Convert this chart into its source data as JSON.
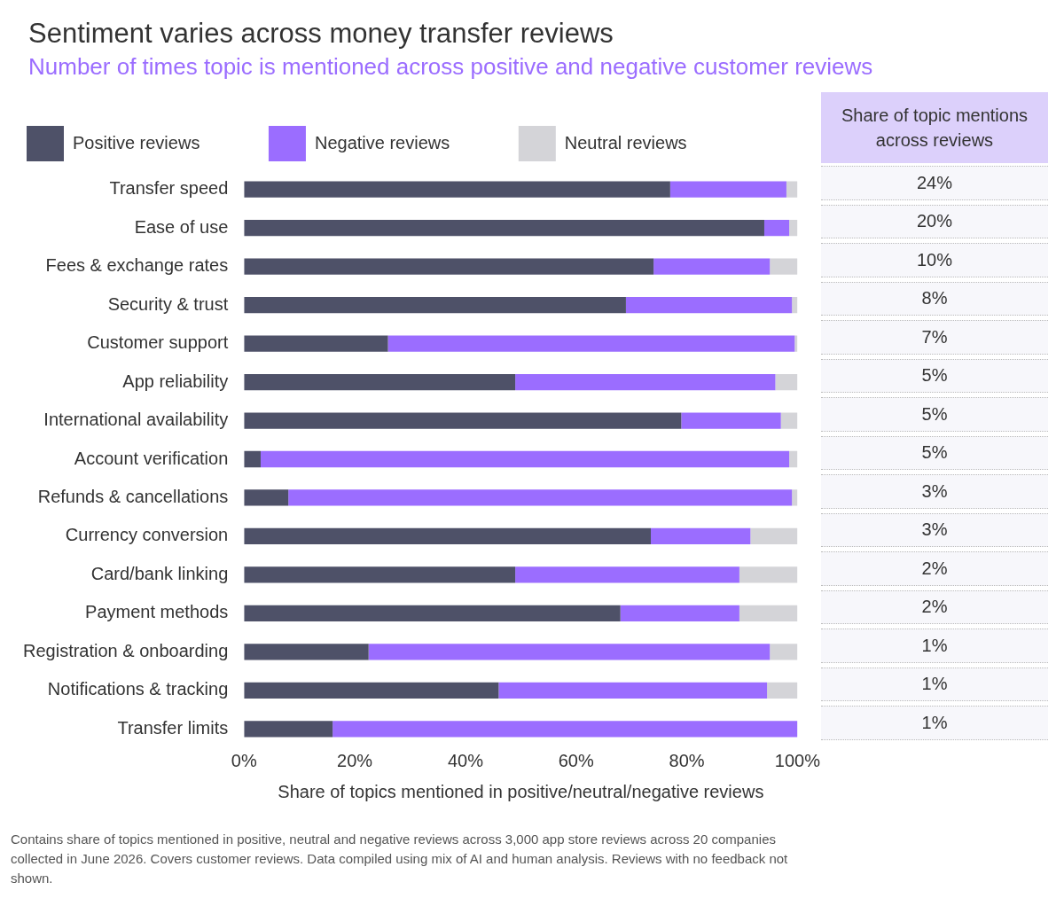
{
  "chart_data": [
    {
      "type": "bar",
      "orientation": "horizontal",
      "stacked": true,
      "title": "Sentiment varies across money transfer reviews",
      "subtitle": "Number of times topic is mentioned across positive and negative customer reviews",
      "xlabel": "Share of topics mentioned in positive/neutral/negative reviews",
      "categories": [
        "Transfer speed",
        "Ease of use",
        "Fees & exchange rates",
        "Security & trust",
        "Customer support",
        "App reliability",
        "International availability",
        "Account verification",
        "Refunds & cancellations",
        "Currency conversion",
        "Card/bank linking",
        "Payment methods",
        "Registration & onboarding",
        "Notifications & tracking",
        "Transfer limits"
      ],
      "series": [
        {
          "name": "Positive reviews",
          "color": "#4e5168",
          "values": [
            77,
            94,
            74,
            69,
            26,
            49,
            79,
            3,
            8,
            73.5,
            49,
            68,
            22.5,
            46,
            16
          ]
        },
        {
          "name": "Negative reviews",
          "color": "#9b6dff",
          "values": [
            21,
            4.5,
            21,
            30,
            73.5,
            47,
            18,
            95.5,
            91,
            18,
            40.5,
            21.5,
            72.5,
            48.5,
            84
          ]
        },
        {
          "name": "Neutral reviews",
          "color": "#d4d4d8",
          "values": [
            2,
            1.5,
            5,
            1,
            0.5,
            4,
            3,
            1.5,
            1,
            8.5,
            10.5,
            10.5,
            5,
            5.5,
            0
          ]
        }
      ],
      "xlim": [
        0,
        100
      ],
      "xticks": [
        {
          "value": 0,
          "label": "0%"
        },
        {
          "value": 20,
          "label": "20%"
        },
        {
          "value": 40,
          "label": "40%"
        },
        {
          "value": 60,
          "label": "60%"
        },
        {
          "value": 80,
          "label": "80%"
        },
        {
          "value": 100,
          "label": "100%"
        }
      ],
      "legend": "top left",
      "grid": false,
      "annotations": [
        "Contains share of topics mentioned in positive, neutral and negative reviews across 3,000 app store reviews across 20 companies collected in June 2026. Covers customer reviews. Data compiled using mix of AI and human analysis. Reviews with no feedback not shown."
      ]
    },
    {
      "type": "other",
      "title": "Share of topic mentions across reviews",
      "value_labels": [
        "24%",
        "20%",
        "10%",
        "8%",
        "7%",
        "5%",
        "5%",
        "5%",
        "3%",
        "3%",
        "2%",
        "2%",
        "1%",
        "1%",
        "1%"
      ]
    }
  ]
}
